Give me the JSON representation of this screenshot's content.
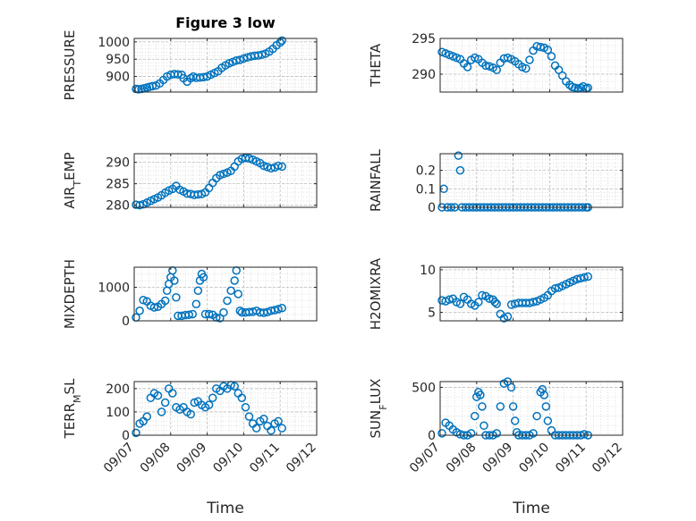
{
  "figure": {
    "title": "Figure 3 low",
    "xlabel": "Time",
    "x_ticks": [
      "09/07",
      "09/08",
      "09/09",
      "09/10",
      "09/11",
      "09/12"
    ],
    "marker_color": "#0072bd",
    "axis_color": "#262626",
    "grid": true
  },
  "chart_data": [
    {
      "type": "scatter",
      "ylabel": "PRESSURE",
      "xlim": [
        0,
        5
      ],
      "ylim": [
        855,
        1010
      ],
      "yticks": [
        900,
        950,
        1000
      ],
      "x": [
        0.05,
        0.12,
        0.2,
        0.28,
        0.35,
        0.42,
        0.5,
        0.6,
        0.7,
        0.8,
        0.9,
        1.0,
        1.1,
        1.2,
        1.3,
        1.35,
        1.45,
        1.55,
        1.62,
        1.7,
        1.8,
        1.9,
        2.0,
        2.1,
        2.2,
        2.3,
        2.4,
        2.5,
        2.6,
        2.7,
        2.8,
        2.9,
        3.0,
        3.1,
        3.2,
        3.3,
        3.4,
        3.5,
        3.6,
        3.7,
        3.8,
        3.9,
        4.0,
        4.05
      ],
      "y": [
        864,
        863,
        864,
        866,
        868,
        870,
        872,
        874,
        880,
        890,
        900,
        905,
        907,
        906,
        905,
        895,
        885,
        895,
        900,
        896,
        897,
        898,
        900,
        905,
        910,
        915,
        925,
        932,
        938,
        942,
        946,
        948,
        952,
        955,
        958,
        960,
        961,
        963,
        966,
        972,
        980,
        990,
        998,
        1004
      ]
    },
    {
      "type": "scatter",
      "ylabel": "THETA",
      "xlim": [
        0,
        5
      ],
      "ylim": [
        287.5,
        295
      ],
      "yticks": [
        290,
        295
      ],
      "x": [
        0.05,
        0.15,
        0.25,
        0.35,
        0.45,
        0.55,
        0.65,
        0.75,
        0.85,
        0.95,
        1.05,
        1.15,
        1.25,
        1.35,
        1.45,
        1.55,
        1.65,
        1.75,
        1.85,
        1.95,
        2.05,
        2.15,
        2.25,
        2.35,
        2.45,
        2.55,
        2.65,
        2.75,
        2.85,
        2.95,
        3.05,
        3.15,
        3.25,
        3.35,
        3.45,
        3.55,
        3.62,
        3.7,
        3.78,
        3.85,
        3.92,
        4.0,
        4.05
      ],
      "y": [
        293.1,
        292.9,
        292.7,
        292.5,
        292.3,
        292.1,
        291.5,
        291.0,
        292.0,
        292.3,
        292.1,
        291.6,
        291.2,
        291.1,
        290.9,
        290.6,
        291.6,
        292.2,
        292.3,
        292.1,
        291.8,
        291.4,
        291.0,
        290.8,
        292.0,
        293.3,
        293.9,
        293.8,
        293.7,
        293.4,
        292.5,
        291.2,
        290.6,
        289.8,
        289.0,
        288.5,
        288.2,
        288.1,
        288.0,
        288.1,
        288.3,
        288.0,
        288.1
      ]
    },
    {
      "type": "scatter",
      "ylabel": "AIR_TEMP",
      "xlim": [
        0,
        5
      ],
      "ylim": [
        279.5,
        292
      ],
      "yticks": [
        280,
        285,
        290
      ],
      "x": [
        0.05,
        0.15,
        0.25,
        0.35,
        0.45,
        0.55,
        0.65,
        0.75,
        0.85,
        0.95,
        1.05,
        1.15,
        1.25,
        1.35,
        1.45,
        1.55,
        1.65,
        1.75,
        1.85,
        1.95,
        2.05,
        2.15,
        2.25,
        2.35,
        2.45,
        2.55,
        2.65,
        2.75,
        2.85,
        2.95,
        3.05,
        3.15,
        3.25,
        3.35,
        3.45,
        3.55,
        3.65,
        3.75,
        3.85,
        3.95,
        4.05
      ],
      "y": [
        280.1,
        280.0,
        280.2,
        280.6,
        281.0,
        281.4,
        281.8,
        282.3,
        282.9,
        283.4,
        283.8,
        284.5,
        283.6,
        283.2,
        282.7,
        282.6,
        282.4,
        282.5,
        282.6,
        283.0,
        284.0,
        285.2,
        286.3,
        287.0,
        287.3,
        287.6,
        288.0,
        289.0,
        290.2,
        290.8,
        291.0,
        290.9,
        290.6,
        290.2,
        289.8,
        289.2,
        288.9,
        288.6,
        288.8,
        289.2,
        289.0
      ]
    },
    {
      "type": "scatter",
      "ylabel": "RAINFALL",
      "xlim": [
        0,
        5
      ],
      "ylim": [
        0,
        0.29
      ],
      "yticks": [
        0,
        0.1,
        0.2
      ],
      "ytick_labels": [
        "0",
        "0.1",
        "0.2"
      ],
      "x": [
        0.05,
        0.1,
        0.2,
        0.3,
        0.4,
        0.5,
        0.55,
        0.6,
        0.7,
        0.8,
        0.9,
        1.0,
        1.1,
        1.2,
        1.3,
        1.4,
        1.5,
        1.6,
        1.7,
        1.8,
        1.9,
        2.0,
        2.1,
        2.2,
        2.3,
        2.4,
        2.5,
        2.6,
        2.7,
        2.8,
        2.9,
        3.0,
        3.1,
        3.2,
        3.3,
        3.4,
        3.5,
        3.6,
        3.7,
        3.8,
        3.9,
        4.0,
        4.05
      ],
      "y": [
        0,
        0.1,
        0,
        0,
        0,
        0.28,
        0.2,
        0,
        0,
        0,
        0,
        0,
        0,
        0,
        0,
        0,
        0,
        0,
        0,
        0,
        0,
        0,
        0,
        0,
        0,
        0,
        0,
        0,
        0,
        0,
        0,
        0,
        0,
        0,
        0,
        0,
        0,
        0,
        0,
        0,
        0,
        0,
        0
      ]
    },
    {
      "type": "scatter",
      "ylabel": "MIXDEPTH",
      "xlim": [
        0,
        5
      ],
      "ylim": [
        0,
        1600
      ],
      "yticks": [
        0,
        1000
      ],
      "x": [
        0.05,
        0.15,
        0.25,
        0.35,
        0.45,
        0.55,
        0.65,
        0.75,
        0.85,
        0.9,
        0.95,
        1.0,
        1.05,
        1.1,
        1.15,
        1.2,
        1.3,
        1.4,
        1.5,
        1.6,
        1.7,
        1.75,
        1.8,
        1.85,
        1.9,
        1.95,
        2.05,
        2.15,
        2.25,
        2.35,
        2.45,
        2.55,
        2.65,
        2.75,
        2.8,
        2.85,
        2.9,
        2.95,
        3.05,
        3.15,
        3.25,
        3.35,
        3.45,
        3.55,
        3.65,
        3.75,
        3.85,
        3.95,
        4.05
      ],
      "y": [
        100,
        300,
        620,
        580,
        450,
        400,
        420,
        500,
        600,
        900,
        1100,
        1300,
        1500,
        1200,
        700,
        150,
        150,
        170,
        180,
        200,
        500,
        900,
        1200,
        1400,
        1300,
        200,
        200,
        180,
        100,
        80,
        250,
        600,
        900,
        1200,
        1500,
        800,
        300,
        250,
        250,
        260,
        270,
        300,
        250,
        240,
        260,
        300,
        320,
        350,
        380
      ]
    },
    {
      "type": "scatter",
      "ylabel": "H2OMIXRA",
      "xlim": [
        0,
        5
      ],
      "ylim": [
        4,
        10.3
      ],
      "yticks": [
        5,
        10
      ],
      "x": [
        0.05,
        0.15,
        0.25,
        0.35,
        0.45,
        0.55,
        0.65,
        0.75,
        0.85,
        0.95,
        1.05,
        1.15,
        1.25,
        1.35,
        1.45,
        1.5,
        1.55,
        1.65,
        1.75,
        1.85,
        1.95,
        2.05,
        2.15,
        2.25,
        2.35,
        2.45,
        2.55,
        2.65,
        2.75,
        2.85,
        2.95,
        3.05,
        3.15,
        3.25,
        3.35,
        3.45,
        3.55,
        3.65,
        3.75,
        3.85,
        3.95,
        4.05
      ],
      "y": [
        6.4,
        6.3,
        6.5,
        6.6,
        6.2,
        6.0,
        6.8,
        6.5,
        6.0,
        5.8,
        6.2,
        7.0,
        6.9,
        6.6,
        6.5,
        6.2,
        6.0,
        4.8,
        4.3,
        4.5,
        5.9,
        6.0,
        6.1,
        6.1,
        6.1,
        6.1,
        6.2,
        6.3,
        6.5,
        6.7,
        7.0,
        7.5,
        7.8,
        7.9,
        8.1,
        8.3,
        8.5,
        8.7,
        8.9,
        9.0,
        9.1,
        9.2
      ]
    },
    {
      "type": "scatter",
      "ylabel": "TERR_MSL",
      "xlim": [
        0,
        5
      ],
      "ylim": [
        0,
        230
      ],
      "yticks": [
        0,
        100,
        200
      ],
      "x": [
        0.05,
        0.15,
        0.25,
        0.35,
        0.45,
        0.55,
        0.65,
        0.75,
        0.85,
        0.95,
        1.05,
        1.15,
        1.25,
        1.35,
        1.45,
        1.55,
        1.65,
        1.75,
        1.85,
        1.95,
        2.05,
        2.15,
        2.25,
        2.35,
        2.45,
        2.55,
        2.65,
        2.75,
        2.85,
        2.95,
        3.05,
        3.15,
        3.25,
        3.35,
        3.45,
        3.55,
        3.65,
        3.75,
        3.85,
        3.95,
        4.05
      ],
      "y": [
        10,
        50,
        60,
        80,
        160,
        180,
        170,
        100,
        140,
        200,
        180,
        120,
        110,
        120,
        100,
        90,
        140,
        145,
        130,
        120,
        130,
        160,
        200,
        190,
        210,
        200,
        215,
        210,
        180,
        160,
        120,
        80,
        50,
        30,
        60,
        70,
        40,
        20,
        50,
        60,
        30
      ]
    },
    {
      "type": "scatter",
      "ylabel": "SUN_FLUX",
      "xlim": [
        0,
        5
      ],
      "ylim": [
        0,
        560
      ],
      "yticks": [
        0,
        500
      ],
      "x": [
        0.05,
        0.15,
        0.25,
        0.35,
        0.45,
        0.55,
        0.65,
        0.75,
        0.85,
        0.95,
        1.0,
        1.05,
        1.1,
        1.15,
        1.2,
        1.25,
        1.35,
        1.45,
        1.55,
        1.65,
        1.75,
        1.85,
        1.95,
        2.0,
        2.05,
        2.1,
        2.15,
        2.25,
        2.35,
        2.45,
        2.55,
        2.65,
        2.75,
        2.8,
        2.85,
        2.9,
        2.95,
        3.05,
        3.15,
        3.25,
        3.35,
        3.45,
        3.55,
        3.65,
        3.75,
        3.85,
        3.95,
        4.05
      ],
      "y": [
        20,
        130,
        100,
        60,
        30,
        10,
        0,
        0,
        20,
        200,
        400,
        450,
        420,
        300,
        100,
        0,
        0,
        0,
        20,
        300,
        540,
        560,
        500,
        300,
        150,
        30,
        0,
        0,
        0,
        0,
        20,
        200,
        450,
        480,
        420,
        300,
        150,
        50,
        0,
        0,
        0,
        0,
        0,
        0,
        0,
        0,
        10,
        0
      ]
    }
  ]
}
